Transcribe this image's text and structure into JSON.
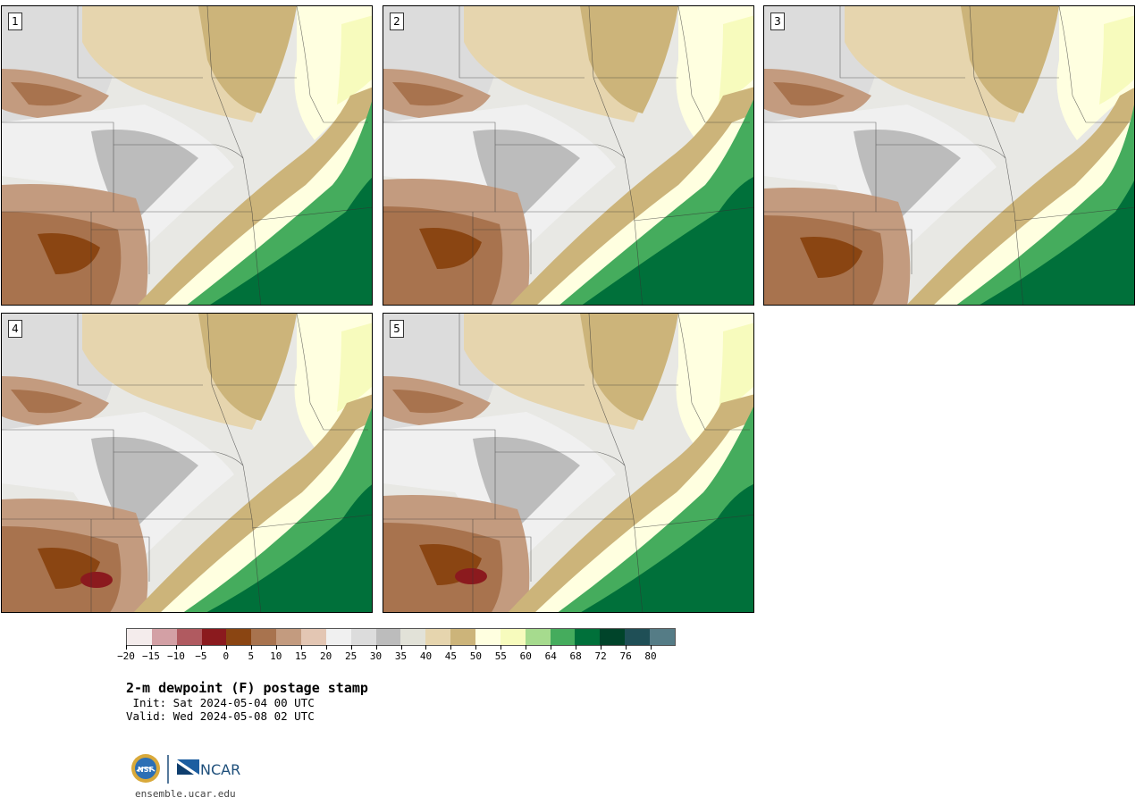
{
  "panels": [
    {
      "number": "1"
    },
    {
      "number": "2"
    },
    {
      "number": "3"
    },
    {
      "number": "4"
    },
    {
      "number": "5"
    }
  ],
  "colorbar": {
    "colors": [
      "#f4ecec",
      "#d3a0a5",
      "#b05a60",
      "#8b1a1e",
      "#8a4512",
      "#a8734e",
      "#c39b7f",
      "#e3c6b3",
      "#f0f0f0",
      "#dcdcdc",
      "#bcbcbc",
      "#e2e2d8",
      "#e6d5ae",
      "#ccb47a",
      "#ffffe0",
      "#f7fbbd",
      "#a6db8e",
      "#45ac5d",
      "#00703a",
      "#00442a",
      "#1f4f56",
      "#557c86"
    ],
    "tick_labels": [
      "−20",
      "−15",
      "−10",
      "−5",
      "0",
      "5",
      "10",
      "15",
      "20",
      "25",
      "30",
      "35",
      "40",
      "45",
      "50",
      "55",
      "60",
      "64",
      "68",
      "72",
      "76",
      "80"
    ]
  },
  "title": "2-m dewpoint (F) postage stamp",
  "init": " Init: Sat 2024-05-04 00 UTC",
  "valid": "Valid: Wed 2024-05-08 02 UTC",
  "logo": {
    "left": "NSF",
    "right": "NCAR"
  },
  "site": "ensemble.ucar.edu"
}
